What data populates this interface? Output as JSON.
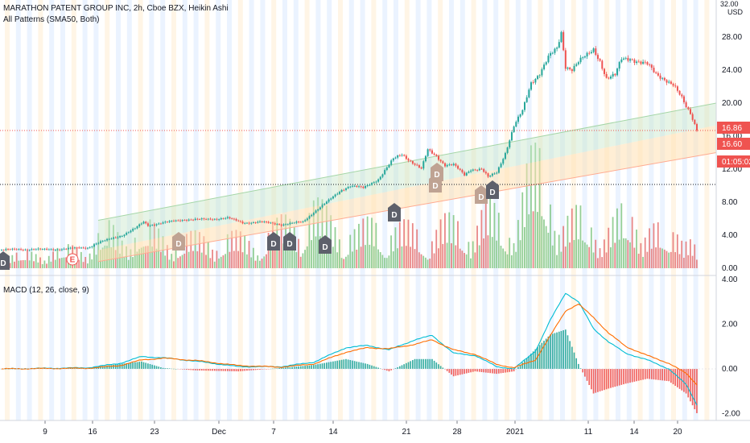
{
  "header": {
    "symbol_line": "MARATHON PATENT GROUP INC, 2h, Cboe BZX, Heikin Ashi",
    "indicator": "All Patterns (SMA50, Both)"
  },
  "macd_pane": {
    "label": "MACD (12, 26, close, 9)"
  },
  "axis": {
    "currency": "USD",
    "top_tick": "32.00"
  },
  "price_tags": [
    {
      "text": "16.86",
      "color": "#ef5350"
    },
    {
      "text": "16.60",
      "color": "#ef5350"
    },
    {
      "text": "01:05:02",
      "color": "#ef5350"
    }
  ],
  "patterns": [
    {
      "label": "D",
      "kind": "bearish"
    },
    {
      "label": "E",
      "kind": "event"
    },
    {
      "label": "D",
      "kind": "bullish"
    },
    {
      "label": "D",
      "kind": "bearish"
    },
    {
      "label": "D",
      "kind": "bearish"
    },
    {
      "label": "D",
      "kind": "bearish"
    },
    {
      "label": "D",
      "kind": "bearish"
    },
    {
      "label": "D",
      "kind": "bullish"
    },
    {
      "label": "D",
      "kind": "bullish"
    },
    {
      "label": "D",
      "kind": "bearish"
    },
    {
      "label": "D",
      "kind": "bullish"
    }
  ],
  "chart_data": [
    {
      "type": "candlestick",
      "title": "MARATHON PATENT GROUP INC, 2h, Cboe BZX, Heikin Ashi",
      "y_ticks": [
        "28.00",
        "24.00",
        "20.00",
        "16.00",
        "12.00",
        "8.00",
        "4.00",
        "0.00"
      ],
      "x_ticks": [
        "9",
        "16",
        "23",
        "Dec",
        "7",
        "14",
        "21",
        "28",
        "2021",
        "11",
        "14",
        "20"
      ],
      "ylim": [
        0,
        32
      ],
      "bull_color": "#26a69a",
      "bear_color": "#ef5350",
      "price_anchors": [
        [
          0,
          2.2
        ],
        [
          10,
          2.3
        ],
        [
          20,
          2.25
        ],
        [
          30,
          2.35
        ],
        [
          40,
          2.5
        ],
        [
          44,
          3.0
        ],
        [
          50,
          3.5
        ],
        [
          56,
          4.0
        ],
        [
          62,
          4.8
        ],
        [
          66,
          5.6
        ],
        [
          68,
          5.2
        ],
        [
          75,
          5.5
        ],
        [
          85,
          5.9
        ],
        [
          95,
          5.9
        ],
        [
          105,
          6.1
        ],
        [
          112,
          5.5
        ],
        [
          120,
          5.6
        ],
        [
          130,
          5.3
        ],
        [
          140,
          5.6
        ],
        [
          145,
          6.8
        ],
        [
          152,
          8.2
        ],
        [
          158,
          9.5
        ],
        [
          162,
          10.0
        ],
        [
          168,
          9.7
        ],
        [
          175,
          10.8
        ],
        [
          182,
          13.2
        ],
        [
          186,
          13.8
        ],
        [
          190,
          13.0
        ],
        [
          195,
          12.0
        ],
        [
          198,
          14.3
        ],
        [
          202,
          13.6
        ],
        [
          206,
          12.5
        ],
        [
          210,
          12.5
        ],
        [
          215,
          11.3
        ],
        [
          218,
          12.0
        ],
        [
          223,
          12.0
        ],
        [
          226,
          11.0
        ],
        [
          230,
          11.6
        ],
        [
          234,
          14.0
        ],
        [
          238,
          17.2
        ],
        [
          242,
          19.0
        ],
        [
          246,
          22.5
        ],
        [
          250,
          23.7
        ],
        [
          254,
          25.5
        ],
        [
          258,
          26.5
        ],
        [
          260,
          28.5
        ],
        [
          262,
          24.5
        ],
        [
          265,
          24.2
        ],
        [
          268,
          25.0
        ],
        [
          272,
          25.7
        ],
        [
          275,
          26.5
        ],
        [
          278,
          25.2
        ],
        [
          281,
          23.0
        ],
        [
          285,
          23.3
        ],
        [
          288,
          25.3
        ],
        [
          292,
          25.5
        ],
        [
          296,
          25.0
        ],
        [
          300,
          24.6
        ],
        [
          304,
          23.5
        ],
        [
          308,
          23.0
        ],
        [
          312,
          22.2
        ],
        [
          316,
          20.5
        ],
        [
          318,
          19.5
        ],
        [
          320,
          18.8
        ],
        [
          322,
          17.5
        ],
        [
          323,
          16.9
        ]
      ],
      "volume_anchors": [
        [
          0,
          0.8
        ],
        [
          40,
          1.5
        ],
        [
          48,
          2.8
        ],
        [
          56,
          2.2
        ],
        [
          64,
          3.0
        ],
        [
          80,
          2.0
        ],
        [
          100,
          2.2
        ],
        [
          120,
          2.0
        ],
        [
          135,
          3.5
        ],
        [
          145,
          4.2
        ],
        [
          155,
          3.2
        ],
        [
          165,
          2.5
        ],
        [
          175,
          3.3
        ],
        [
          185,
          2.8
        ],
        [
          195,
          2.5
        ],
        [
          205,
          3.2
        ],
        [
          215,
          2.8
        ],
        [
          225,
          4.3
        ],
        [
          235,
          2.6
        ],
        [
          245,
          7.0
        ],
        [
          252,
          6.8
        ],
        [
          260,
          3.5
        ],
        [
          270,
          3.5
        ],
        [
          280,
          2.7
        ],
        [
          290,
          3.8
        ],
        [
          300,
          3.3
        ],
        [
          310,
          2.0
        ],
        [
          318,
          3.5
        ],
        [
          323,
          1.2
        ]
      ],
      "channel": {
        "upper_start": 5.8,
        "upper_end": 20.0,
        "mid_start": 2.2,
        "mid_end": 17.3,
        "lower_start": 0.8,
        "lower_end": 14.0
      }
    },
    {
      "type": "line",
      "title": "MACD (12, 26, close, 9)",
      "y_ticks": [
        "4.00",
        "2.00",
        "0.00",
        "-2.00"
      ],
      "ylim": [
        -2,
        4
      ],
      "series": [
        {
          "name": "MACD",
          "color": "#00bcd4",
          "anchors": [
            [
              0,
              0.0
            ],
            [
              40,
              0.05
            ],
            [
              55,
              0.25
            ],
            [
              65,
              0.55
            ],
            [
              75,
              0.5
            ],
            [
              90,
              0.35
            ],
            [
              110,
              0.1
            ],
            [
              130,
              0.1
            ],
            [
              145,
              0.3
            ],
            [
              160,
              0.95
            ],
            [
              170,
              1.05
            ],
            [
              180,
              0.85
            ],
            [
              192,
              1.3
            ],
            [
              200,
              1.5
            ],
            [
              210,
              0.7
            ],
            [
              220,
              0.6
            ],
            [
              230,
              0.1
            ],
            [
              238,
              0.0
            ],
            [
              248,
              0.8
            ],
            [
              255,
              2.2
            ],
            [
              262,
              3.4
            ],
            [
              268,
              3.0
            ],
            [
              275,
              1.8
            ],
            [
              282,
              1.2
            ],
            [
              290,
              0.7
            ],
            [
              300,
              0.4
            ],
            [
              310,
              0.0
            ],
            [
              318,
              -0.7
            ],
            [
              323,
              -1.6
            ]
          ]
        },
        {
          "name": "Signal",
          "color": "#ff6d00",
          "anchors": [
            [
              0,
              0.0
            ],
            [
              40,
              0.03
            ],
            [
              55,
              0.15
            ],
            [
              65,
              0.4
            ],
            [
              75,
              0.48
            ],
            [
              90,
              0.38
            ],
            [
              110,
              0.15
            ],
            [
              130,
              0.08
            ],
            [
              145,
              0.22
            ],
            [
              160,
              0.75
            ],
            [
              170,
              0.95
            ],
            [
              180,
              0.9
            ],
            [
              192,
              1.1
            ],
            [
              200,
              1.3
            ],
            [
              210,
              0.85
            ],
            [
              220,
              0.65
            ],
            [
              230,
              0.2
            ],
            [
              238,
              0.05
            ],
            [
              248,
              0.4
            ],
            [
              255,
              1.5
            ],
            [
              262,
              2.6
            ],
            [
              268,
              2.9
            ],
            [
              275,
              2.3
            ],
            [
              282,
              1.6
            ],
            [
              290,
              1.0
            ],
            [
              300,
              0.6
            ],
            [
              310,
              0.25
            ],
            [
              318,
              -0.2
            ],
            [
              323,
              -0.7
            ]
          ]
        }
      ],
      "histogram": {
        "pos_color": "#26a69a",
        "neg_color": "#ef5350"
      }
    }
  ]
}
